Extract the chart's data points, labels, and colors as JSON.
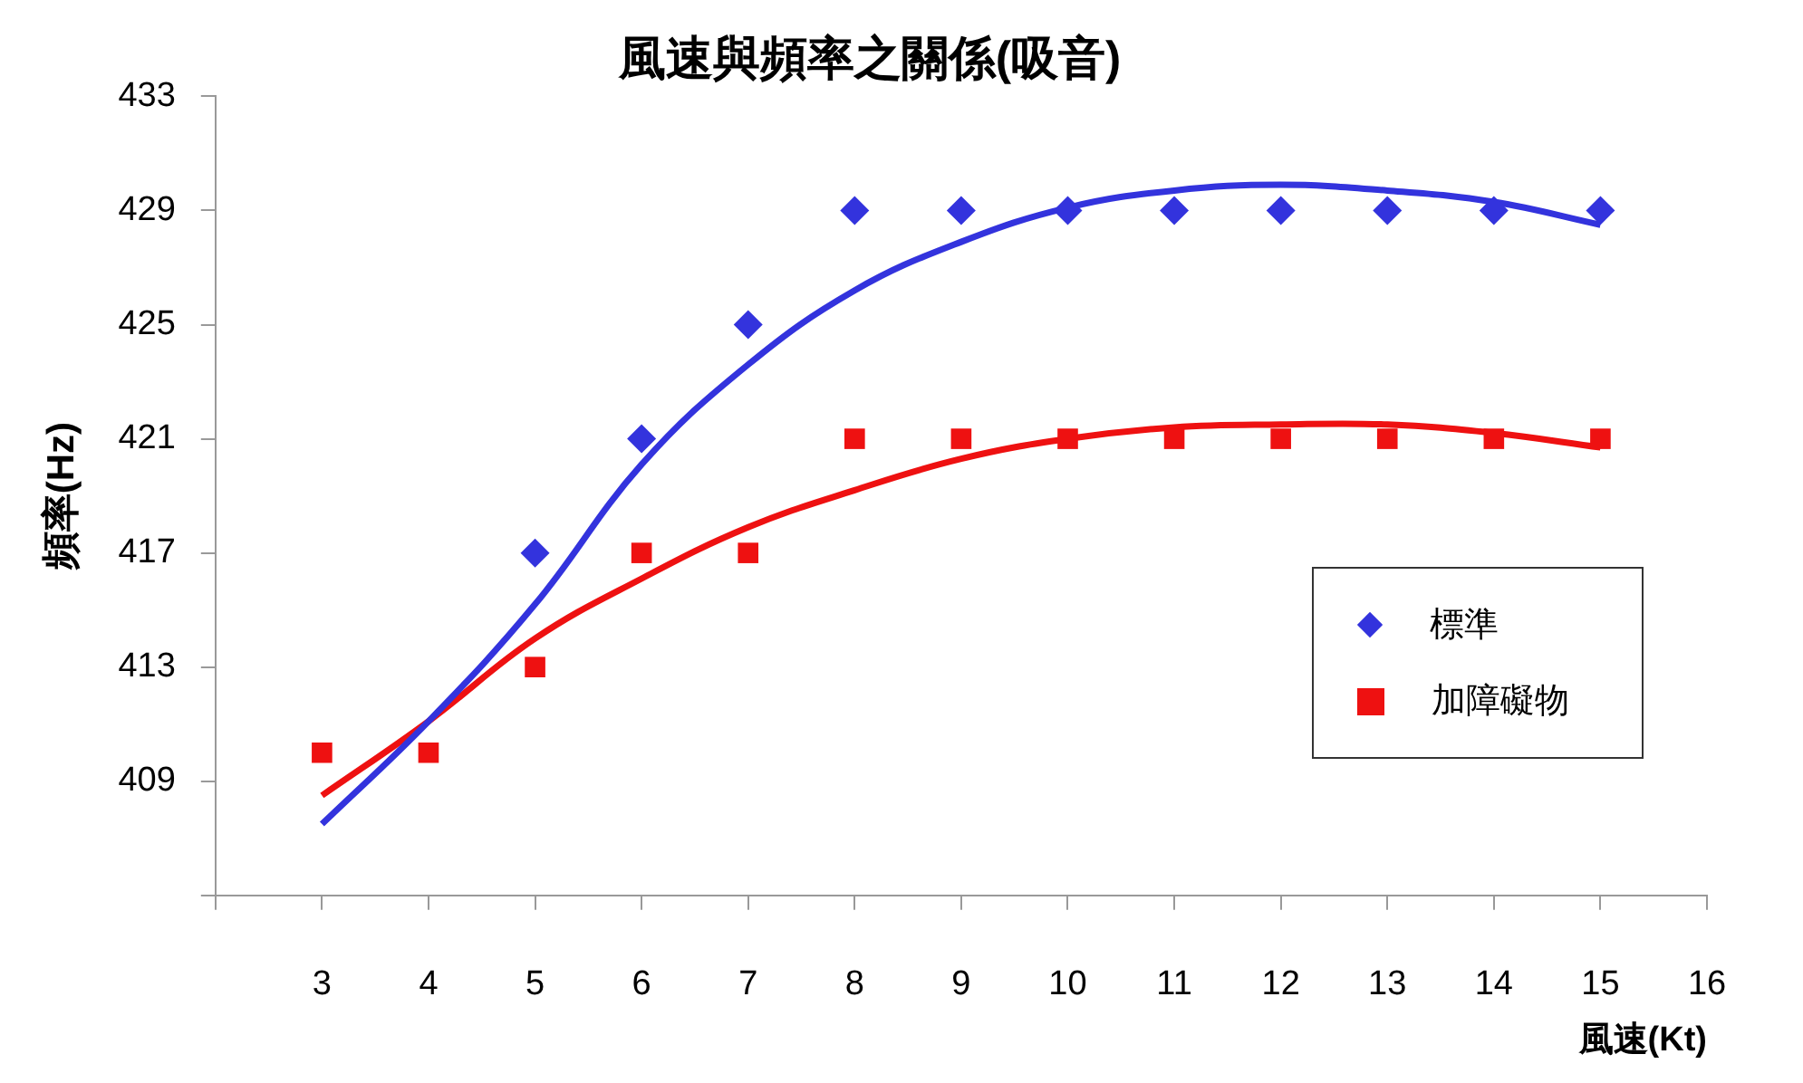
{
  "chart_data": {
    "type": "scatter",
    "title": "風速與頻率之關係(吸音)",
    "xlabel": "風速(Kt)",
    "ylabel": "頻率(Hz)",
    "x": [
      3,
      4,
      5,
      6,
      7,
      8,
      9,
      10,
      11,
      12,
      13,
      14,
      15
    ],
    "xlim": [
      2,
      16
    ],
    "xticks": [
      {
        "value": 2,
        "label": null
      },
      3,
      4,
      5,
      6,
      7,
      8,
      9,
      10,
      11,
      12,
      13,
      14,
      15,
      16
    ],
    "ylim": [
      405,
      433
    ],
    "yticks": [
      {
        "value": 405,
        "label": null
      },
      409,
      413,
      417,
      421,
      425,
      429,
      433
    ],
    "grid": false,
    "legend": "right",
    "series": [
      {
        "name": "標準",
        "marker": "diamond",
        "color": "#3333dd",
        "values": [
          null,
          null,
          417,
          421,
          425,
          429,
          429,
          429,
          429,
          429,
          429,
          429,
          429
        ]
      },
      {
        "name": "加障礙物",
        "marker": "square",
        "color": "#ee1111",
        "values": [
          410,
          410,
          413,
          417,
          417,
          421,
          421,
          421,
          421,
          421,
          421,
          421,
          421
        ]
      },
      {
        "type": "line",
        "marker": "none",
        "color": "#3333dd",
        "values": [
          407.5,
          411.1,
          415.2,
          420.1,
          423.6,
          426.2,
          427.9,
          429.1,
          429.7,
          429.9,
          429.7,
          429.3,
          428.5
        ]
      },
      {
        "type": "line",
        "marker": "none",
        "color": "#ee1111",
        "values": [
          408.5,
          411.1,
          414.0,
          416.1,
          417.9,
          419.2,
          420.3,
          421.0,
          421.4,
          421.5,
          421.5,
          421.2,
          420.7
        ]
      }
    ]
  }
}
